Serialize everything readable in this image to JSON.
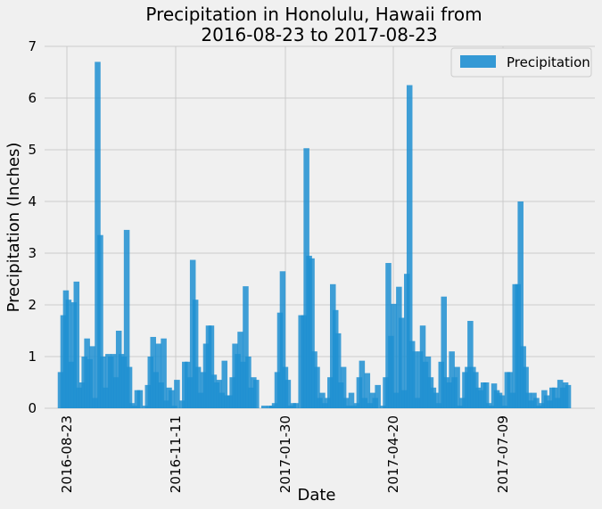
{
  "chart_data": {
    "type": "bar",
    "title_line1": "Precipitation in Honolulu, Hawaii from",
    "title_line2": "2016-08-23 to 2017-08-23",
    "xlabel": "Date",
    "ylabel": "Precipitation (Inches)",
    "x_tick_labels": [
      "2016-08-23",
      "2016-11-11",
      "2017-01-30",
      "2017-04-20",
      "2017-07-09"
    ],
    "y_tick_labels": [
      "0",
      "1",
      "2",
      "3",
      "4",
      "5",
      "6",
      "7"
    ],
    "ylim": [
      0,
      7
    ],
    "grid": true,
    "legend_position": "top-right",
    "series": [
      {
        "name": "Precipitation",
        "color": "#1f8fd1",
        "values": [
          0.7,
          1.8,
          2.28,
          2.1,
          0.9,
          2.05,
          2.45,
          0.4,
          0.5,
          1.0,
          1.35,
          0.95,
          1.2,
          0.2,
          6.7,
          3.35,
          1.0,
          0.4,
          1.05,
          1.0,
          1.05,
          0.6,
          1.5,
          1.05,
          1.0,
          3.45,
          0.8,
          0.1,
          0.05,
          0.35,
          0.35,
          0.0,
          0.05,
          0.45,
          1.0,
          1.38,
          0.7,
          1.25,
          0.5,
          1.35,
          0.15,
          0.4,
          0.35,
          0.05,
          0.55,
          0.0,
          0.15,
          0.9,
          0.9,
          0.6,
          2.87,
          2.1,
          0.8,
          0.3,
          0.7,
          1.25,
          1.6,
          1.6,
          0.65,
          0.5,
          0.55,
          0.3,
          0.92,
          0.25,
          0.25,
          0.6,
          1.25,
          1.05,
          1.48,
          0.9,
          2.36,
          1.0,
          0.4,
          0.6,
          0.55,
          0.0,
          0.0,
          0.05,
          0.0,
          0.05,
          0.05,
          0.1,
          0.7,
          1.85,
          2.65,
          0.8,
          0.55,
          0.05,
          0.1,
          0.1,
          0.0,
          1.8,
          1.8,
          5.03,
          2.95,
          2.9,
          1.1,
          0.8,
          0.2,
          0.3,
          0.1,
          0.2,
          0.6,
          2.4,
          1.9,
          1.45,
          0.5,
          0.8,
          0.2,
          0.05,
          0.3,
          0.05,
          0.1,
          0.6,
          0.92,
          0.2,
          0.68,
          0.1,
          0.3,
          0.2,
          0.45,
          0.0,
          0.05,
          0.6,
          2.81,
          1.4,
          2.02,
          0.3,
          2.35,
          1.75,
          0.35,
          2.6,
          6.25,
          1.3,
          1.1,
          0.2,
          1.1,
          1.6,
          0.9,
          1.0,
          0.6,
          0.4,
          0.3,
          0.1,
          0.9,
          2.16,
          0.6,
          0.5,
          1.1,
          0.6,
          0.8,
          0.05,
          0.2,
          0.7,
          0.8,
          1.69,
          0.8,
          0.7,
          0.4,
          0.35,
          0.5,
          0.5,
          0.1,
          0.05,
          0.48,
          0.35,
          0.3,
          0.25,
          0.05,
          0.7,
          0.7,
          0.3,
          2.4,
          2.4,
          4.0,
          1.2,
          0.8,
          0.3,
          0.15,
          0.3,
          0.2,
          0.05,
          0.1,
          0.35,
          0.25,
          0.15,
          0.4,
          0.4,
          0.2,
          0.55,
          0.4,
          0.5,
          0.45
        ]
      }
    ]
  }
}
